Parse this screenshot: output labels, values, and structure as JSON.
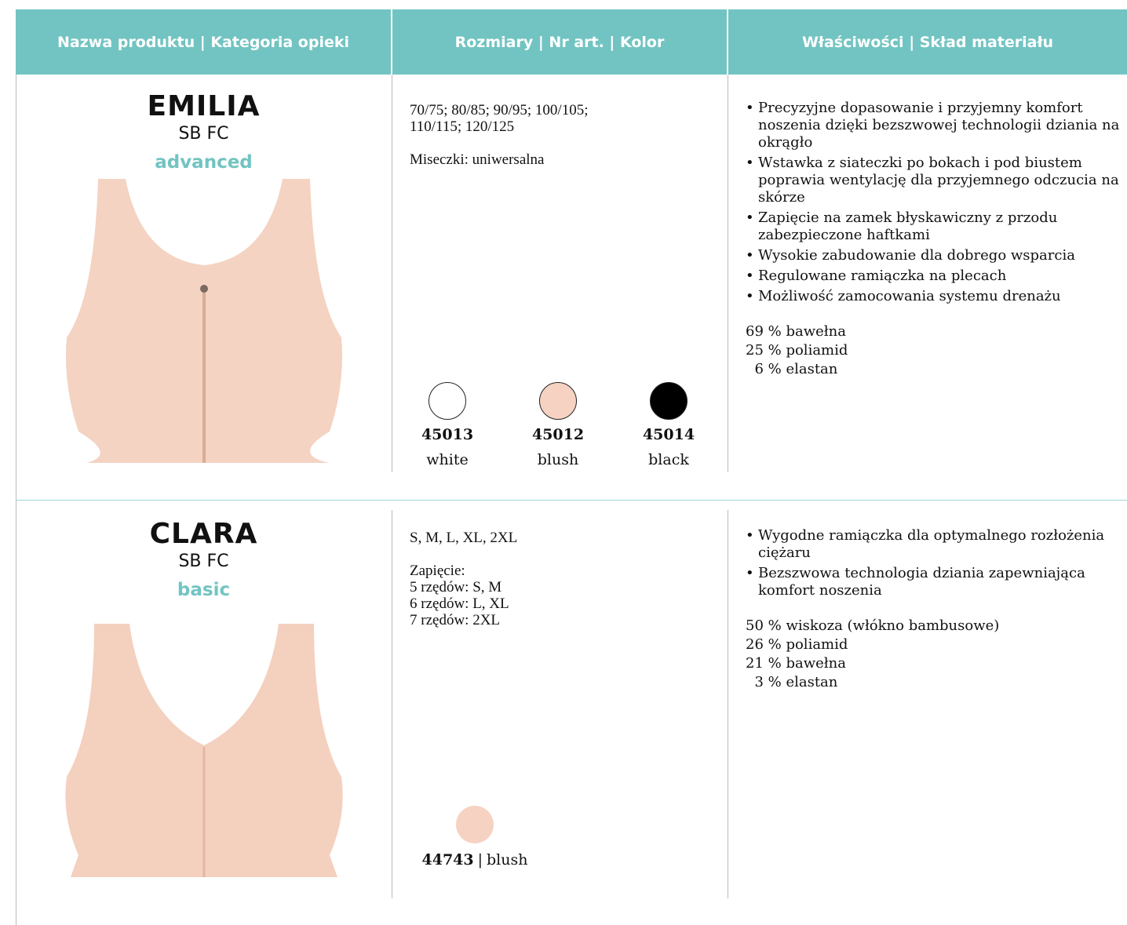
{
  "header": [
    "Nazwa produktu | Kategoria opieki",
    "Rozmiary | Nr art. | Kolor",
    "Właściwości | Skład materiału"
  ],
  "products": [
    {
      "name": "EMILIA",
      "code": "SB FC",
      "level": "advanced",
      "sizes": [
        "70/75; 80/85; 90/95; 100/105;",
        "110/115; 120/125",
        "",
        "Miseczki: uniwersalna"
      ],
      "colors": [
        {
          "article": "45013",
          "color": "white",
          "swatch": "#ffffff"
        },
        {
          "article": "45012",
          "color": "blush",
          "swatch": "#f6d2c2"
        },
        {
          "article": "45014",
          "color": "black",
          "swatch": "#000000"
        }
      ],
      "features": [
        "Precyzyjne dopasowanie i przyjemny komfort noszenia dzięki bezszwowej technologii dziania na okrągło",
        "Wstawka z siateczki po bokach i pod biustem poprawia wentylację dla przyjemnego odczucia na skórze",
        "Zapięcie na zamek błyskawiczny z przodu zabezpieczone haftkami",
        "Wysokie zabudowanie dla dobrego wsparcia",
        "Regulowane ramiączka na plecach",
        "Możliwość zamocowania systemu drenażu"
      ],
      "composition": [
        "69 % bawełna",
        "25 % poliamid",
        "  6 % elastan"
      ]
    },
    {
      "name": "CLARA",
      "code": "SB FC",
      "level": "basic",
      "sizes": [
        "S, M, L, XL, 2XL",
        "",
        "Zapięcie:",
        "5 rzędów: S, M",
        "6 rzędów: L, XL",
        "7 rzędów: 2XL"
      ],
      "colors": [
        {
          "article": "44743",
          "separator": "|",
          "color": "blush",
          "swatch": "#f6d2c2"
        }
      ],
      "features": [
        "Wygodne ramiączka dla optymalnego rozłożenia ciężaru",
        "Bezszwowa technologia dziania zapewniająca komfort noszenia"
      ],
      "composition": [
        "50 % wiskoza (włókno bambusowe)",
        "26 % poliamid",
        "21 % bawełna",
        "  3 % elastan"
      ]
    }
  ]
}
